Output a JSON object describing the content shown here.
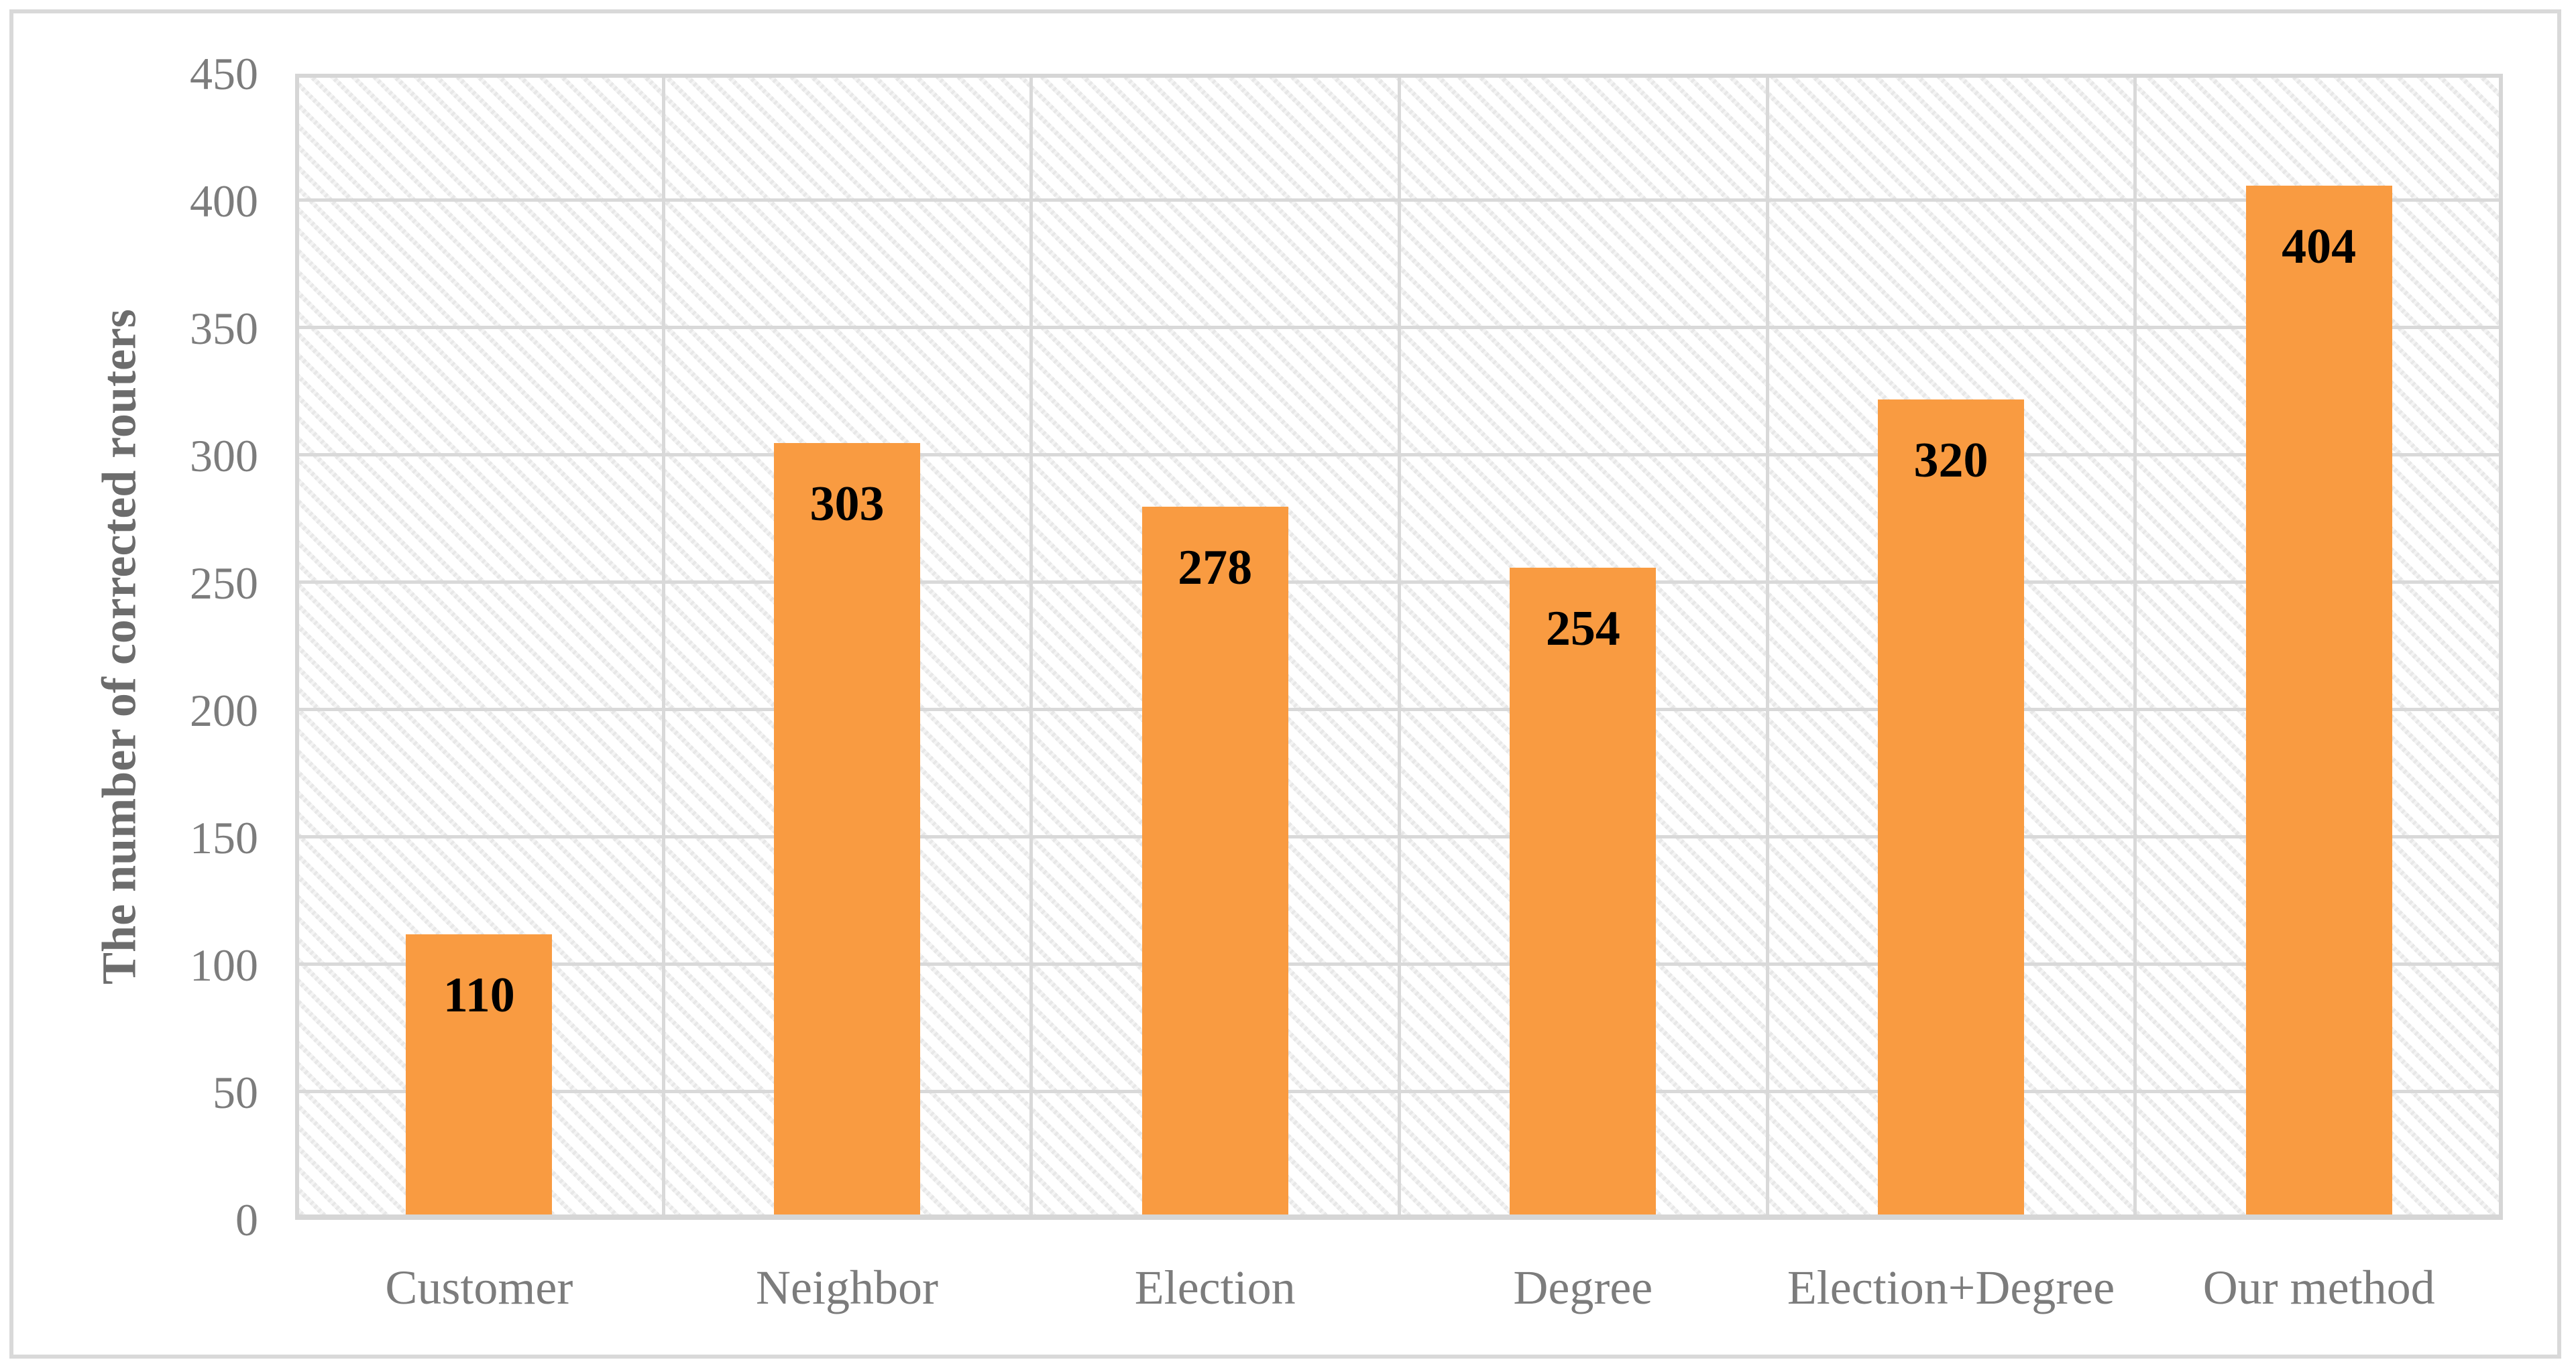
{
  "chart_data": {
    "type": "bar",
    "title": "",
    "xlabel": "",
    "ylabel": "The number of corrected routers",
    "categories": [
      "Customer",
      "Neighbor",
      "Election",
      "Degree",
      "Election+Degree",
      "Our method"
    ],
    "values": [
      110,
      303,
      278,
      254,
      320,
      404
    ],
    "data_labels": [
      "110",
      "303",
      "278",
      "254",
      "320",
      "404"
    ],
    "ylim": [
      0,
      450
    ],
    "ytick_interval": 50,
    "yticks": [
      0,
      50,
      100,
      150,
      200,
      250,
      300,
      350,
      400,
      450
    ],
    "grid": "horizontal gridlines every 50 and vertical gridlines at category boundaries",
    "legend_position": "none",
    "plot_area_pattern": "light diagonal hatch",
    "colors": {
      "bar": "#f99b41",
      "data_label": "#000000",
      "gridline": "#d9d9d9",
      "plot_border": "#d6d6d6",
      "outer_frame": "#d9d9d9",
      "tick_label": "#7c7c7c",
      "axis_title": "#6c6c6c"
    }
  }
}
